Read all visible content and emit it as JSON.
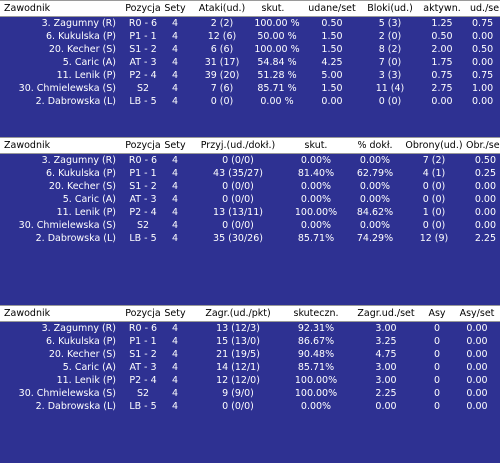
{
  "tables": [
    {
      "id": "attack",
      "columns": [
        "Zawodnik",
        "Pozycja",
        "Sety",
        "Ataki(ud.)",
        "skut.",
        "udane/set",
        "Bloki(ud.)",
        "aktywn.",
        "ud./se"
      ],
      "rows": [
        [
          "3. Zagumny (R)",
          "R0 - 6",
          "4",
          "2 (2)",
          "100.00 %",
          "0.50",
          "5 (3)",
          "1.25",
          "0.75"
        ],
        [
          "6. Kukulska (P)",
          "P1 - 1",
          "4",
          "12 (6)",
          "50.00 %",
          "1.50",
          "2 (0)",
          "0.50",
          "0.00"
        ],
        [
          "20. Kecher (S)",
          "S1 - 2",
          "4",
          "6 (6)",
          "100.00 %",
          "1.50",
          "8 (2)",
          "2.00",
          "0.50"
        ],
        [
          "5. Caric (A)",
          "AT - 3",
          "4",
          "31 (17)",
          "54.84 %",
          "4.25",
          "7 (0)",
          "1.75",
          "0.00"
        ],
        [
          "11. Lenik (P)",
          "P2 - 4",
          "4",
          "39 (20)",
          "51.28 %",
          "5.00",
          "3 (3)",
          "0.75",
          "0.75"
        ],
        [
          "30. Chmielewska (S)",
          "S2",
          "4",
          "7 (6)",
          "85.71 %",
          "1.50",
          "11 (4)",
          "2.75",
          "1.00"
        ],
        [
          "2. Dabrowska (L)",
          "LB - 5",
          "4",
          "0 (0)",
          "0.00 %",
          "0.00",
          "0 (0)",
          "0.00",
          "0.00"
        ]
      ]
    },
    {
      "id": "reception",
      "columns": [
        "Zawodnik",
        "Pozycja",
        "Sety",
        "Przyj.(ud./dokł.)",
        "skut.",
        "% dokł.",
        "Obrony(ud.)",
        "Obr./se"
      ],
      "rows": [
        [
          "3. Zagumny (R)",
          "R0 - 6",
          "4",
          "0 (0/0)",
          "0.00%",
          "0.00%",
          "7 (2)",
          "0.50"
        ],
        [
          "6. Kukulska (P)",
          "P1 - 1",
          "4",
          "43 (35/27)",
          "81.40%",
          "62.79%",
          "4 (1)",
          "0.25"
        ],
        [
          "20. Kecher (S)",
          "S1 - 2",
          "4",
          "0 (0/0)",
          "0.00%",
          "0.00%",
          "0 (0)",
          "0.00"
        ],
        [
          "5. Caric (A)",
          "AT - 3",
          "4",
          "0 (0/0)",
          "0.00%",
          "0.00%",
          "0 (0)",
          "0.00"
        ],
        [
          "11. Lenik (P)",
          "P2 - 4",
          "4",
          "13 (13/11)",
          "100.00%",
          "84.62%",
          "1 (0)",
          "0.00"
        ],
        [
          "30. Chmielewska (S)",
          "S2",
          "4",
          "0 (0/0)",
          "0.00%",
          "0.00%",
          "0 (0)",
          "0.00"
        ],
        [
          "2. Dabrowska (L)",
          "LB - 5",
          "4",
          "35 (30/26)",
          "85.71%",
          "74.29%",
          "12 (9)",
          "2.25"
        ]
      ]
    },
    {
      "id": "serve",
      "columns": [
        "Zawodnik",
        "Pozycja",
        "Sety",
        "Zagr.(ud./pkt)",
        "skuteczn.",
        "Zagr.ud./set",
        "Asy",
        "Asy/set"
      ],
      "rows": [
        [
          "3. Zagumny (R)",
          "R0 - 6",
          "4",
          "13 (12/3)",
          "92.31%",
          "3.00",
          "0",
          "0.00"
        ],
        [
          "6. Kukulska (P)",
          "P1 - 1",
          "4",
          "15 (13/0)",
          "86.67%",
          "3.25",
          "0",
          "0.00"
        ],
        [
          "20. Kecher (S)",
          "S1 - 2",
          "4",
          "21 (19/5)",
          "90.48%",
          "4.75",
          "0",
          "0.00"
        ],
        [
          "5. Caric (A)",
          "AT - 3",
          "4",
          "14 (12/1)",
          "85.71%",
          "3.00",
          "0",
          "0.00"
        ],
        [
          "11. Lenik (P)",
          "P2 - 4",
          "4",
          "12 (12/0)",
          "100.00%",
          "3.00",
          "0",
          "0.00"
        ],
        [
          "30. Chmielewska (S)",
          "S2",
          "4",
          "9 (9/0)",
          "100.00%",
          "2.25",
          "0",
          "0.00"
        ],
        [
          "2. Dabrowska (L)",
          "LB - 5",
          "4",
          "0 (0/0)",
          "0.00%",
          "0.00",
          "0",
          "0.00"
        ]
      ]
    }
  ],
  "colors": {
    "background": "#2e3192",
    "header_bg": "#ffffff",
    "row_text": "#ffffff"
  }
}
